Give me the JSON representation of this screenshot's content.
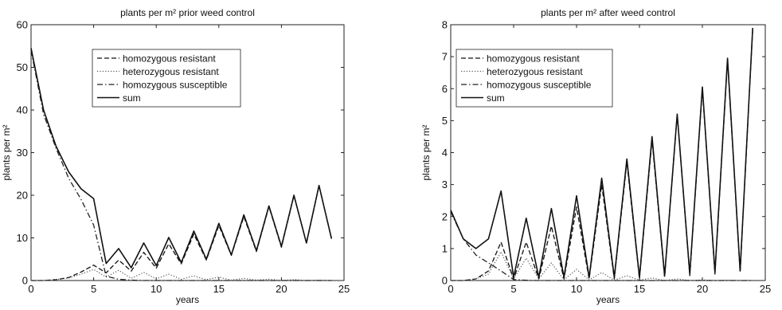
{
  "chart_data": [
    {
      "type": "line",
      "title": "plants per m² prior weed control",
      "xlabel": "years",
      "ylabel": "plants per m²",
      "xlim": [
        0,
        25
      ],
      "ylim": [
        0,
        60
      ],
      "xticks": [
        "0",
        "5",
        "10",
        "15",
        "20",
        "25"
      ],
      "yticks": [
        "0",
        "10",
        "20",
        "30",
        "40",
        "50",
        "60"
      ],
      "legend_position": "top-center",
      "series": [
        {
          "name": "homozygous resistant",
          "style": "dashed",
          "x": [
            0,
            1,
            2,
            3,
            4,
            5,
            6,
            7,
            8,
            9,
            10,
            11,
            12,
            13,
            14,
            15,
            16,
            17,
            18,
            19,
            20,
            21,
            22,
            23,
            24
          ],
          "y": [
            0,
            0,
            0.2,
            0.7,
            2.0,
            3.6,
            1.8,
            4.8,
            2.2,
            6.6,
            2.9,
            8.6,
            3.9,
            10.9,
            4.8,
            12.9,
            5.9,
            15.0,
            6.8,
            17.3,
            7.8,
            19.9,
            8.8,
            22.2,
            9.9
          ]
        },
        {
          "name": "heterozygous resistant",
          "style": "dotted",
          "x": [
            0,
            1,
            2,
            3,
            4,
            5,
            6,
            7,
            8,
            9,
            10,
            11,
            12,
            13,
            14,
            15,
            16,
            17,
            18,
            19,
            20,
            21,
            22,
            23,
            24
          ],
          "y": [
            0,
            0,
            0.2,
            0.6,
            1.5,
            2.6,
            0.8,
            2.4,
            0.5,
            1.9,
            0.4,
            1.5,
            0.3,
            1.1,
            0.2,
            0.8,
            0.1,
            0.5,
            0.1,
            0.3,
            0.0,
            0.2,
            0.0,
            0.1,
            0.0
          ]
        },
        {
          "name": "homozygous susceptible",
          "style": "dashdot",
          "x": [
            0,
            1,
            2,
            3,
            4,
            5,
            6,
            7,
            8,
            9,
            10,
            11,
            12,
            13,
            14,
            15,
            16,
            17,
            18,
            19,
            20,
            21,
            22,
            23,
            24
          ],
          "y": [
            54,
            39,
            31,
            24,
            19,
            13,
            1,
            0.3,
            0.1,
            0,
            0,
            0,
            0,
            0,
            0,
            0,
            0,
            0,
            0,
            0,
            0,
            0,
            0,
            0,
            0
          ]
        },
        {
          "name": "sum",
          "style": "solid",
          "x": [
            0,
            1,
            2,
            3,
            4,
            5,
            6,
            7,
            8,
            9,
            10,
            11,
            12,
            13,
            14,
            15,
            16,
            17,
            18,
            19,
            20,
            21,
            22,
            23,
            24
          ],
          "y": [
            54.5,
            40,
            31.5,
            25.5,
            21.5,
            19.2,
            4,
            7.5,
            3,
            8.8,
            3.5,
            10.1,
            4.2,
            11.6,
            5,
            13.4,
            6,
            15.4,
            7,
            17.5,
            8,
            20,
            8.8,
            22.3,
            9.8
          ]
        }
      ]
    },
    {
      "type": "line",
      "title": "plants per m² after weed control",
      "xlabel": "years",
      "ylabel": "plants per m²",
      "xlim": [
        0,
        25
      ],
      "ylim": [
        0,
        8
      ],
      "xticks": [
        "0",
        "5",
        "10",
        "15",
        "20",
        "25"
      ],
      "yticks": [
        "0",
        "1",
        "2",
        "3",
        "4",
        "5",
        "6",
        "7",
        "8"
      ],
      "legend_position": "top-left",
      "series": [
        {
          "name": "homozygous resistant",
          "style": "dashed",
          "x": [
            0,
            1,
            2,
            3,
            4,
            5,
            6,
            7,
            8,
            9,
            10,
            11,
            12,
            13,
            14,
            15,
            16,
            17,
            18,
            19,
            20,
            21,
            22,
            23,
            24
          ],
          "y": [
            0,
            0,
            0.05,
            0.3,
            1.2,
            0.05,
            1.2,
            0.05,
            1.7,
            0.05,
            2.3,
            0.05,
            3.0,
            0.05,
            3.7,
            0.05,
            4.4,
            0.1,
            5.2,
            0.15,
            6.0,
            0.2,
            6.9,
            0.25,
            7.85
          ]
        },
        {
          "name": "heterozygous resistant",
          "style": "dotted",
          "x": [
            0,
            1,
            2,
            3,
            4,
            5,
            6,
            7,
            8,
            9,
            10,
            11,
            12,
            13,
            14,
            15,
            16,
            17,
            18,
            19,
            20,
            21,
            22,
            23,
            24
          ],
          "y": [
            0,
            0,
            0.05,
            0.2,
            0.9,
            0.05,
            0.7,
            0.05,
            0.55,
            0.02,
            0.35,
            0.02,
            0.25,
            0.01,
            0.15,
            0.01,
            0.08,
            0,
            0.05,
            0,
            0.02,
            0,
            0.01,
            0,
            0
          ]
        },
        {
          "name": "homozygous susceptible",
          "style": "dashdot",
          "x": [
            0,
            1,
            2,
            3,
            4,
            5,
            6,
            7,
            8,
            9,
            10,
            11,
            12,
            13,
            14,
            15,
            16,
            17,
            18,
            19,
            20,
            21,
            22,
            23,
            24
          ],
          "y": [
            2.15,
            1.3,
            0.8,
            0.55,
            0.3,
            0.03,
            0.01,
            0,
            0,
            0,
            0,
            0,
            0,
            0,
            0,
            0,
            0,
            0,
            0,
            0,
            0,
            0,
            0,
            0,
            0
          ]
        },
        {
          "name": "sum",
          "style": "solid",
          "x": [
            0,
            1,
            2,
            3,
            4,
            5,
            6,
            7,
            8,
            9,
            10,
            11,
            12,
            13,
            14,
            15,
            16,
            17,
            18,
            19,
            20,
            21,
            22,
            23,
            24
          ],
          "y": [
            2.2,
            1.3,
            1.0,
            1.3,
            2.8,
            0.1,
            1.95,
            0.1,
            2.25,
            0.1,
            2.65,
            0.1,
            3.2,
            0.1,
            3.8,
            0.1,
            4.5,
            0.15,
            5.2,
            0.2,
            6.05,
            0.25,
            6.95,
            0.3,
            7.9
          ]
        }
      ]
    }
  ]
}
